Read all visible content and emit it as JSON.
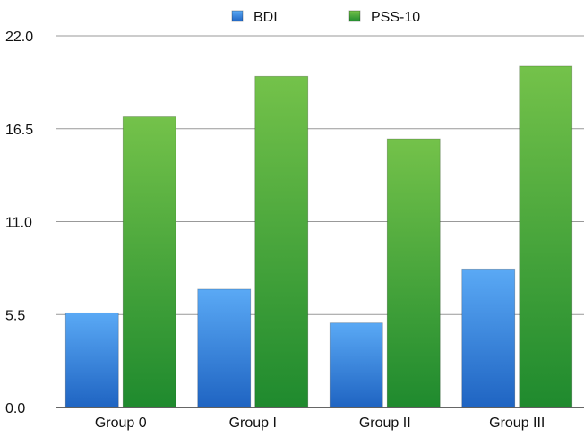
{
  "chart_data": {
    "type": "bar",
    "title": "",
    "xlabel": "",
    "ylabel": "",
    "categories": [
      "Group 0",
      "Group I",
      "Group II",
      "Group III"
    ],
    "series": [
      {
        "name": "BDI",
        "values": [
          5.6,
          7.0,
          5.0,
          8.2
        ],
        "color_top": "#5aa9f5",
        "color_bottom": "#1f64c2"
      },
      {
        "name": "PSS-10",
        "values": [
          17.2,
          19.6,
          15.9,
          20.2
        ],
        "color_top": "#74c24a",
        "color_bottom": "#1f8a2e"
      }
    ],
    "ylim": [
      0,
      22
    ],
    "yticks": [
      0,
      5.5,
      11,
      16.5,
      22
    ],
    "ytick_labels": [
      "0.0",
      "5.5",
      "11.0",
      "16.5",
      "22.0"
    ],
    "grid": true,
    "legend_position": "top"
  }
}
